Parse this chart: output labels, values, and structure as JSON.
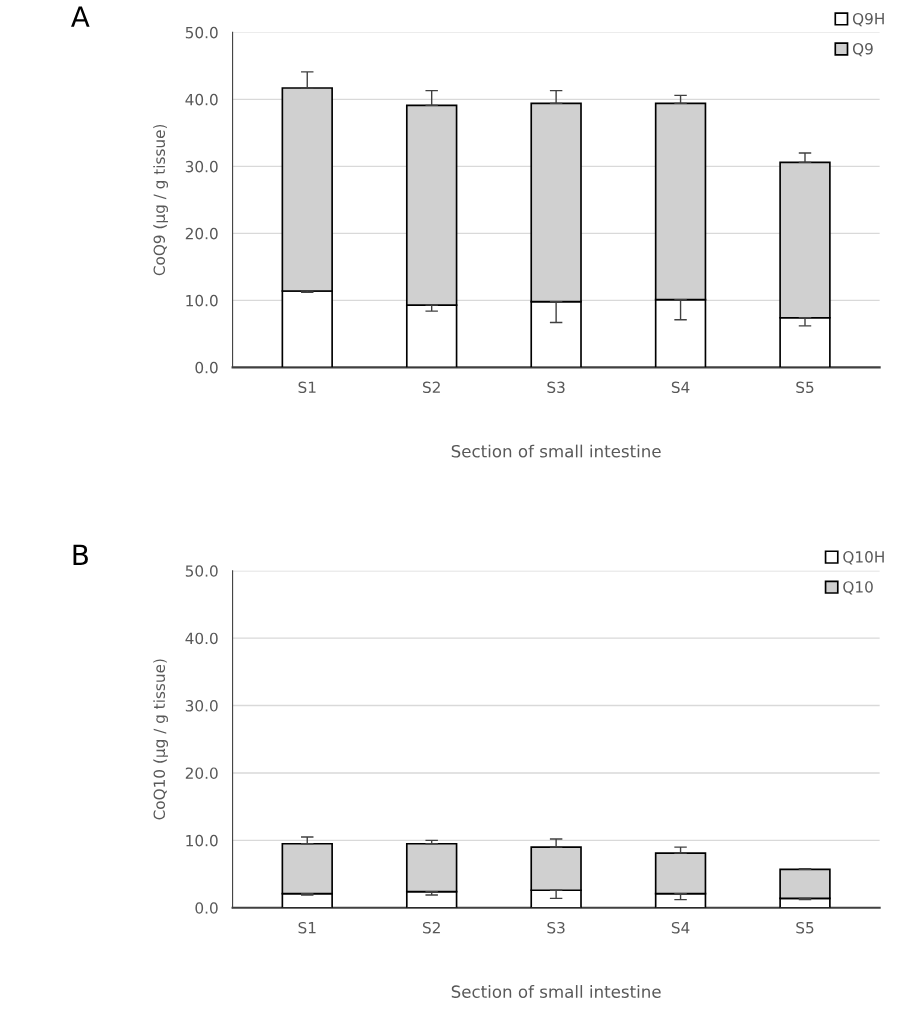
{
  "chart_data": [
    {
      "type": "bar",
      "stacked": true,
      "categories": [
        "S1",
        "S2",
        "S3",
        "S4",
        "S5"
      ],
      "xlabel": "Section of small intestine",
      "ylabel": "CoQ9 (μg / g tissue)",
      "ylim": [
        0,
        50
      ],
      "yticks": [
        {
          "value": 0,
          "label": "0.0"
        },
        {
          "value": 10,
          "label": "10.0"
        },
        {
          "value": 20,
          "label": "20.0"
        },
        {
          "value": 30,
          "label": "30.0"
        },
        {
          "value": 40,
          "label": "40.0"
        },
        {
          "value": 50,
          "label": "50.0"
        }
      ],
      "grid": "y",
      "legend": "top right",
      "annotations": [
        "A"
      ],
      "series": [
        {
          "name": "Q9H",
          "color": "#ffffff",
          "values": [
            11.4,
            9.3,
            9.8,
            10.1,
            7.4
          ],
          "errors": [
            [
              11.2,
              11.4
            ],
            [
              8.4,
              9.3
            ],
            [
              6.7,
              9.8
            ],
            [
              7.1,
              10.1
            ],
            [
              6.2,
              7.4
            ]
          ]
        },
        {
          "name": "Q9",
          "color": "#d0d0d0",
          "values": [
            30.3,
            29.8,
            29.6,
            29.3,
            23.2
          ],
          "errors": [
            [
              41.7,
              44.1
            ],
            [
              39.1,
              41.3
            ],
            [
              39.4,
              41.3
            ],
            [
              39.4,
              40.6
            ],
            [
              30.6,
              32.0
            ]
          ]
        }
      ]
    },
    {
      "type": "bar",
      "stacked": true,
      "categories": [
        "S1",
        "S2",
        "S3",
        "S4",
        "S5"
      ],
      "xlabel": "Section of small intestine",
      "ylabel": "CoQ10 (μg / g tissue)",
      "ylim": [
        0,
        50
      ],
      "yticks": [
        {
          "value": 0,
          "label": "0.0"
        },
        {
          "value": 10,
          "label": "10.0"
        },
        {
          "value": 20,
          "label": "20.0"
        },
        {
          "value": 30,
          "label": "30.0"
        },
        {
          "value": 40,
          "label": "40.0"
        },
        {
          "value": 50,
          "label": "50.0"
        }
      ],
      "grid": "y",
      "legend": "top right",
      "annotations": [
        "B"
      ],
      "series": [
        {
          "name": "Q10H",
          "color": "#ffffff",
          "values": [
            2.1,
            2.4,
            2.6,
            2.1,
            1.4
          ],
          "errors": [
            [
              1.9,
              2.1
            ],
            [
              1.9,
              2.4
            ],
            [
              1.4,
              2.6
            ],
            [
              1.2,
              2.1
            ],
            [
              1.2,
              1.4
            ]
          ]
        },
        {
          "name": "Q10",
          "color": "#d0d0d0",
          "values": [
            7.4,
            7.1,
            6.4,
            6.0,
            4.3
          ],
          "errors": [
            [
              9.5,
              10.5
            ],
            [
              9.5,
              10.0
            ],
            [
              9.0,
              10.2
            ],
            [
              8.1,
              9.0
            ],
            [
              5.7,
              5.8
            ]
          ]
        }
      ]
    }
  ]
}
